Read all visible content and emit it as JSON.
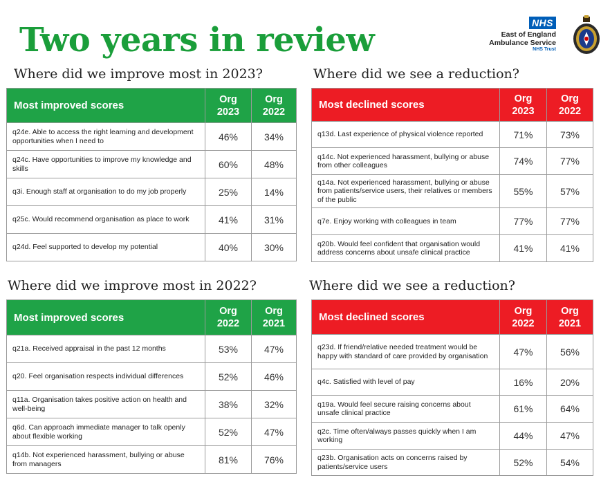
{
  "page_title": "Two years in review",
  "logo": {
    "nhs": "NHS",
    "org_name_line1": "East of England",
    "org_name_line2": "Ambulance Service",
    "trust": "NHS Trust"
  },
  "colors": {
    "title_green": "#1a9e3a",
    "header_green": "#1fa347",
    "header_red": "#ed1c24",
    "nhs_blue": "#005eb8"
  },
  "sections": [
    {
      "heading": "Where did we improve most in 2023?",
      "header": "Most improved scores",
      "col1": [
        "Org",
        "2023"
      ],
      "col2": [
        "Org",
        "2022"
      ],
      "rows": [
        {
          "q": "q24e. Able to access the right learning and development opportunities when I need to",
          "a": "46%",
          "b": "34%"
        },
        {
          "q": "q24c. Have opportunities to improve my knowledge and skills",
          "a": "60%",
          "b": "48%"
        },
        {
          "q": "q3i. Enough staff at organisation to do my job properly",
          "a": "25%",
          "b": "14%"
        },
        {
          "q": "q25c. Would recommend organisation as place to work",
          "a": "41%",
          "b": "31%"
        },
        {
          "q": "q24d. Feel supported to develop my potential",
          "a": "40%",
          "b": "30%"
        }
      ]
    },
    {
      "heading": "Where did we see a reduction?",
      "header": "Most declined scores",
      "col1": [
        "Org",
        "2023"
      ],
      "col2": [
        "Org",
        "2022"
      ],
      "rows": [
        {
          "q": "q13d. Last experience of physical violence reported",
          "a": "71%",
          "b": "73%"
        },
        {
          "q": "q14c. Not experienced harassment, bullying or abuse from other colleagues",
          "a": "74%",
          "b": "77%"
        },
        {
          "q": "q14a. Not experienced harassment, bullying or abuse from patients/service users, their relatives or members of the public",
          "a": "55%",
          "b": "57%"
        },
        {
          "q": "q7e. Enjoy working with colleagues in team",
          "a": "77%",
          "b": "77%"
        },
        {
          "q": "q20b. Would feel confident that organisation would address concerns about unsafe clinical practice",
          "a": "41%",
          "b": "41%"
        }
      ]
    },
    {
      "heading": "Where did we improve most in 2022?",
      "header": "Most improved scores",
      "col1": [
        "Org",
        "2022"
      ],
      "col2": [
        "Org",
        "2021"
      ],
      "rows": [
        {
          "q": "q21a. Received appraisal in the past 12 months",
          "a": "53%",
          "b": "47%"
        },
        {
          "q": "q20. Feel organisation respects individual differences",
          "a": "52%",
          "b": "46%"
        },
        {
          "q": "q11a. Organisation takes positive action on health and well-being",
          "a": "38%",
          "b": "32%"
        },
        {
          "q": "q6d. Can approach immediate manager to talk openly about flexible working",
          "a": "52%",
          "b": "47%"
        },
        {
          "q": "q14b. Not experienced harassment, bullying or abuse from managers",
          "a": "81%",
          "b": "76%"
        }
      ]
    },
    {
      "heading": "Where did we see a reduction?",
      "header": "Most declined scores",
      "col1": [
        "Org",
        "2022"
      ],
      "col2": [
        "Org",
        "2021"
      ],
      "rows": [
        {
          "q": "q23d. If friend/relative needed treatment would be happy with standard of care provided by organisation",
          "a": "47%",
          "b": "56%"
        },
        {
          "q": "q4c. Satisfied with level of pay",
          "a": "16%",
          "b": "20%"
        },
        {
          "q": "q19a. Would feel secure raising concerns about unsafe clinical practice",
          "a": "61%",
          "b": "64%"
        },
        {
          "q": "q2c. Time often/always passes quickly when I am working",
          "a": "44%",
          "b": "47%"
        },
        {
          "q": "q23b. Organisation acts on concerns raised by patients/service users",
          "a": "52%",
          "b": "54%"
        }
      ]
    }
  ]
}
